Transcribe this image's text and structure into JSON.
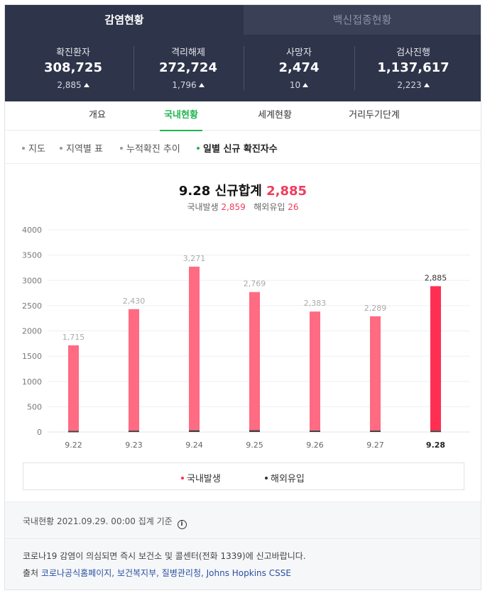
{
  "tabs": {
    "active": "감염현황",
    "other": "백신접종현황"
  },
  "stats": [
    {
      "label": "확진환자",
      "value": "308,725",
      "change": "2,885"
    },
    {
      "label": "격리해제",
      "value": "272,724",
      "change": "1,796"
    },
    {
      "label": "사망자",
      "value": "2,474",
      "change": "10"
    },
    {
      "label": "검사진행",
      "value": "1,137,617",
      "change": "2,223"
    }
  ],
  "subtabs": [
    "개요",
    "국내현황",
    "세계현황",
    "거리두기단계"
  ],
  "filters": [
    "지도",
    "지역별 표",
    "누적확진 추이",
    "일별 신규 확진자수"
  ],
  "summary": {
    "date": "9.28",
    "title_label": "신규합계",
    "total": "2,885",
    "domestic_label": "국내발생",
    "domestic": "2,859",
    "imported_label": "해외유입",
    "imported": "26"
  },
  "colors": {
    "domestic_bar": "#ff6b82",
    "domestic_bar_latest": "#ff2f52",
    "imported_bar": "#444444",
    "accent_green": "#1eb64f",
    "accent_red": "#ef3d5a"
  },
  "chart_data": {
    "type": "bar",
    "stacked": true,
    "categories": [
      "9.22",
      "9.23",
      "9.24",
      "9.25",
      "9.26",
      "9.27",
      "9.28"
    ],
    "totals": [
      1715,
      2430,
      3271,
      2769,
      2383,
      2289,
      2885
    ],
    "total_labels": [
      "1,715",
      "2,430",
      "3,271",
      "2,769",
      "2,383",
      "2,289",
      "2,885"
    ],
    "series": [
      {
        "name": "국내발생",
        "values": [
          1693,
          2403,
          3237,
          2734,
          2353,
          2261,
          2859
        ]
      },
      {
        "name": "해외유입",
        "values": [
          22,
          27,
          34,
          35,
          30,
          28,
          26
        ]
      }
    ],
    "yticks": [
      0,
      500,
      1000,
      1500,
      2000,
      2500,
      3000,
      3500,
      4000
    ],
    "ylim": [
      0,
      4000
    ],
    "grid": true,
    "legend_position": "bottom"
  },
  "footer": {
    "basis": "국내현황 2021.09.29. 00:00 집계 기준",
    "notice": "코로나19 감염이 의심되면 즉시 보건소 및 콜센터(전화 1339)에 신고바랍니다.",
    "source_prefix": "출처",
    "sources": [
      "코로나공식홈페이지,",
      "보건복지부,",
      "질병관리청,",
      "Johns Hopkins CSSE"
    ]
  }
}
